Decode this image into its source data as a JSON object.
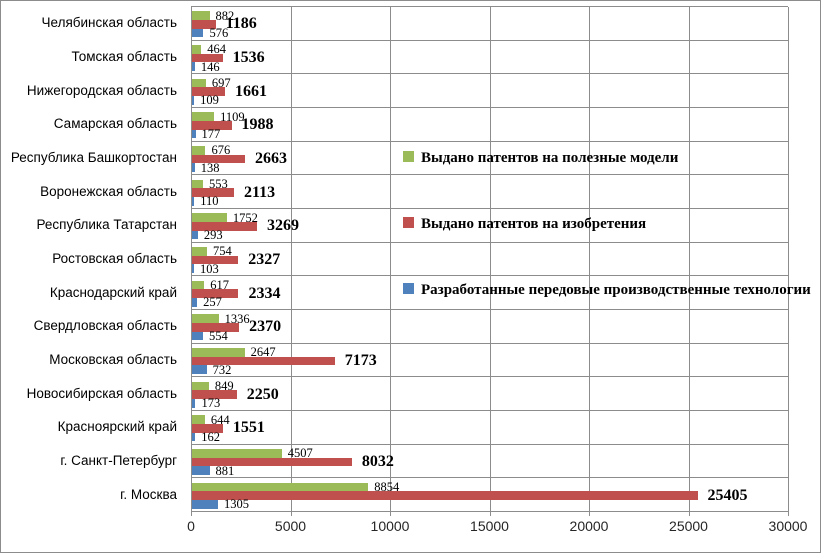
{
  "chart_data": {
    "type": "bar",
    "orientation": "horizontal",
    "title": "",
    "xlabel": "",
    "ylabel": "",
    "xlim": [
      0,
      30000
    ],
    "x_ticks": [
      0,
      5000,
      10000,
      15000,
      20000,
      25000,
      30000
    ],
    "grid": "on",
    "gridline_color": "#8C8C8C",
    "background": "#FFFFFF",
    "legend_position": "right-middle",
    "categories": [
      "Челябинская область",
      "Томская область",
      "Нижегородская область",
      "Самарская область",
      "Республика Башкортостан",
      "Воронежская область",
      "Республика Татарстан",
      "Ростовская область",
      "Краснодарский край",
      "Свердловская область",
      "Московская область",
      "Новосибирская область",
      "Красноярский край",
      "г. Санкт-Петербург",
      "г. Москва"
    ],
    "series": [
      {
        "name": "Выдано патентов на полезные модели",
        "color": "#9BBB59",
        "label_style": "regular",
        "values": [
          882,
          464,
          697,
          1109,
          676,
          553,
          1752,
          754,
          617,
          1336,
          2647,
          849,
          644,
          4507,
          8854
        ]
      },
      {
        "name": "Выдано патентов на изобретения",
        "color": "#C0504D",
        "label_style": "bold",
        "values": [
          1186,
          1536,
          1661,
          1988,
          2663,
          2113,
          3269,
          2327,
          2334,
          2370,
          7173,
          2250,
          1551,
          8032,
          25405
        ]
      },
      {
        "name": "Разработанные передовые производственные технологии",
        "color": "#4F81BD",
        "label_style": "regular",
        "values": [
          576,
          146,
          109,
          177,
          138,
          110,
          293,
          103,
          257,
          554,
          732,
          173,
          162,
          881,
          1305
        ]
      }
    ]
  }
}
